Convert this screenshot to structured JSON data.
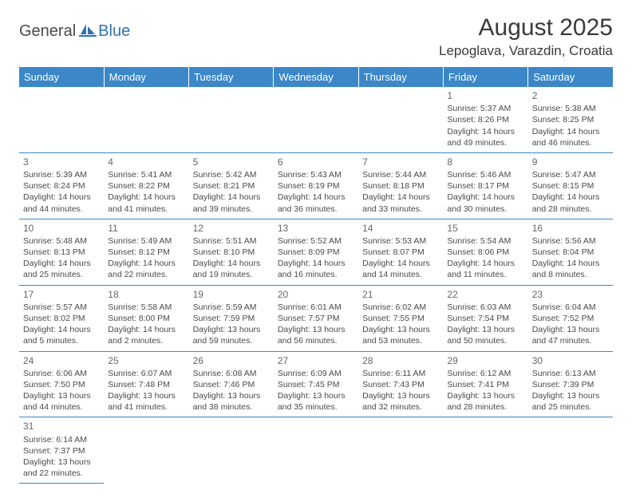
{
  "logo": {
    "part1": "General",
    "part2": "Blue"
  },
  "title": "August 2025",
  "location": "Lepoglava, Varazdin, Croatia",
  "colors": {
    "header_bg": "#3b87c8",
    "header_text": "#ffffff",
    "text": "#4a4a4a",
    "logo_dark": "#4a4a4a",
    "logo_blue": "#2d72b5"
  },
  "weekdays": [
    "Sunday",
    "Monday",
    "Tuesday",
    "Wednesday",
    "Thursday",
    "Friday",
    "Saturday"
  ],
  "weeks": [
    [
      null,
      null,
      null,
      null,
      null,
      {
        "d": "1",
        "sr": "Sunrise: 5:37 AM",
        "ss": "Sunset: 8:26 PM",
        "dl1": "Daylight: 14 hours",
        "dl2": "and 49 minutes."
      },
      {
        "d": "2",
        "sr": "Sunrise: 5:38 AM",
        "ss": "Sunset: 8:25 PM",
        "dl1": "Daylight: 14 hours",
        "dl2": "and 46 minutes."
      }
    ],
    [
      {
        "d": "3",
        "sr": "Sunrise: 5:39 AM",
        "ss": "Sunset: 8:24 PM",
        "dl1": "Daylight: 14 hours",
        "dl2": "and 44 minutes."
      },
      {
        "d": "4",
        "sr": "Sunrise: 5:41 AM",
        "ss": "Sunset: 8:22 PM",
        "dl1": "Daylight: 14 hours",
        "dl2": "and 41 minutes."
      },
      {
        "d": "5",
        "sr": "Sunrise: 5:42 AM",
        "ss": "Sunset: 8:21 PM",
        "dl1": "Daylight: 14 hours",
        "dl2": "and 39 minutes."
      },
      {
        "d": "6",
        "sr": "Sunrise: 5:43 AM",
        "ss": "Sunset: 8:19 PM",
        "dl1": "Daylight: 14 hours",
        "dl2": "and 36 minutes."
      },
      {
        "d": "7",
        "sr": "Sunrise: 5:44 AM",
        "ss": "Sunset: 8:18 PM",
        "dl1": "Daylight: 14 hours",
        "dl2": "and 33 minutes."
      },
      {
        "d": "8",
        "sr": "Sunrise: 5:46 AM",
        "ss": "Sunset: 8:17 PM",
        "dl1": "Daylight: 14 hours",
        "dl2": "and 30 minutes."
      },
      {
        "d": "9",
        "sr": "Sunrise: 5:47 AM",
        "ss": "Sunset: 8:15 PM",
        "dl1": "Daylight: 14 hours",
        "dl2": "and 28 minutes."
      }
    ],
    [
      {
        "d": "10",
        "sr": "Sunrise: 5:48 AM",
        "ss": "Sunset: 8:13 PM",
        "dl1": "Daylight: 14 hours",
        "dl2": "and 25 minutes."
      },
      {
        "d": "11",
        "sr": "Sunrise: 5:49 AM",
        "ss": "Sunset: 8:12 PM",
        "dl1": "Daylight: 14 hours",
        "dl2": "and 22 minutes."
      },
      {
        "d": "12",
        "sr": "Sunrise: 5:51 AM",
        "ss": "Sunset: 8:10 PM",
        "dl1": "Daylight: 14 hours",
        "dl2": "and 19 minutes."
      },
      {
        "d": "13",
        "sr": "Sunrise: 5:52 AM",
        "ss": "Sunset: 8:09 PM",
        "dl1": "Daylight: 14 hours",
        "dl2": "and 16 minutes."
      },
      {
        "d": "14",
        "sr": "Sunrise: 5:53 AM",
        "ss": "Sunset: 8:07 PM",
        "dl1": "Daylight: 14 hours",
        "dl2": "and 14 minutes."
      },
      {
        "d": "15",
        "sr": "Sunrise: 5:54 AM",
        "ss": "Sunset: 8:06 PM",
        "dl1": "Daylight: 14 hours",
        "dl2": "and 11 minutes."
      },
      {
        "d": "16",
        "sr": "Sunrise: 5:56 AM",
        "ss": "Sunset: 8:04 PM",
        "dl1": "Daylight: 14 hours",
        "dl2": "and 8 minutes."
      }
    ],
    [
      {
        "d": "17",
        "sr": "Sunrise: 5:57 AM",
        "ss": "Sunset: 8:02 PM",
        "dl1": "Daylight: 14 hours",
        "dl2": "and 5 minutes."
      },
      {
        "d": "18",
        "sr": "Sunrise: 5:58 AM",
        "ss": "Sunset: 8:00 PM",
        "dl1": "Daylight: 14 hours",
        "dl2": "and 2 minutes."
      },
      {
        "d": "19",
        "sr": "Sunrise: 5:59 AM",
        "ss": "Sunset: 7:59 PM",
        "dl1": "Daylight: 13 hours",
        "dl2": "and 59 minutes."
      },
      {
        "d": "20",
        "sr": "Sunrise: 6:01 AM",
        "ss": "Sunset: 7:57 PM",
        "dl1": "Daylight: 13 hours",
        "dl2": "and 56 minutes."
      },
      {
        "d": "21",
        "sr": "Sunrise: 6:02 AM",
        "ss": "Sunset: 7:55 PM",
        "dl1": "Daylight: 13 hours",
        "dl2": "and 53 minutes."
      },
      {
        "d": "22",
        "sr": "Sunrise: 6:03 AM",
        "ss": "Sunset: 7:54 PM",
        "dl1": "Daylight: 13 hours",
        "dl2": "and 50 minutes."
      },
      {
        "d": "23",
        "sr": "Sunrise: 6:04 AM",
        "ss": "Sunset: 7:52 PM",
        "dl1": "Daylight: 13 hours",
        "dl2": "and 47 minutes."
      }
    ],
    [
      {
        "d": "24",
        "sr": "Sunrise: 6:06 AM",
        "ss": "Sunset: 7:50 PM",
        "dl1": "Daylight: 13 hours",
        "dl2": "and 44 minutes."
      },
      {
        "d": "25",
        "sr": "Sunrise: 6:07 AM",
        "ss": "Sunset: 7:48 PM",
        "dl1": "Daylight: 13 hours",
        "dl2": "and 41 minutes."
      },
      {
        "d": "26",
        "sr": "Sunrise: 6:08 AM",
        "ss": "Sunset: 7:46 PM",
        "dl1": "Daylight: 13 hours",
        "dl2": "and 38 minutes."
      },
      {
        "d": "27",
        "sr": "Sunrise: 6:09 AM",
        "ss": "Sunset: 7:45 PM",
        "dl1": "Daylight: 13 hours",
        "dl2": "and 35 minutes."
      },
      {
        "d": "28",
        "sr": "Sunrise: 6:11 AM",
        "ss": "Sunset: 7:43 PM",
        "dl1": "Daylight: 13 hours",
        "dl2": "and 32 minutes."
      },
      {
        "d": "29",
        "sr": "Sunrise: 6:12 AM",
        "ss": "Sunset: 7:41 PM",
        "dl1": "Daylight: 13 hours",
        "dl2": "and 28 minutes."
      },
      {
        "d": "30",
        "sr": "Sunrise: 6:13 AM",
        "ss": "Sunset: 7:39 PM",
        "dl1": "Daylight: 13 hours",
        "dl2": "and 25 minutes."
      }
    ],
    [
      {
        "d": "31",
        "sr": "Sunrise: 6:14 AM",
        "ss": "Sunset: 7:37 PM",
        "dl1": "Daylight: 13 hours",
        "dl2": "and 22 minutes."
      },
      null,
      null,
      null,
      null,
      null,
      null
    ]
  ]
}
